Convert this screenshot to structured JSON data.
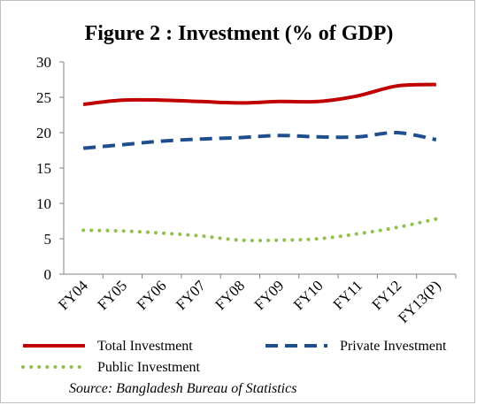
{
  "chart_data": {
    "type": "line",
    "title": "Figure 2 : Investment (% of GDP)",
    "categories": [
      "FY04",
      "FY05",
      "FY06",
      "FY07",
      "FY08",
      "FY09",
      "FY10",
      "FY11",
      "FY12",
      "FY13(P)"
    ],
    "ylim": [
      0,
      30
    ],
    "yticks": [
      0,
      5,
      10,
      15,
      20,
      25,
      30
    ],
    "series": [
      {
        "name": "Total Investment",
        "color": "#c00000",
        "style": "solid",
        "values": [
          24.0,
          24.6,
          24.6,
          24.4,
          24.2,
          24.4,
          24.4,
          25.2,
          26.6,
          26.8
        ]
      },
      {
        "name": "Private Investment",
        "color": "#1f4e8c",
        "style": "dashed",
        "values": [
          17.8,
          18.3,
          18.8,
          19.1,
          19.3,
          19.6,
          19.4,
          19.4,
          20.0,
          19.0
        ]
      },
      {
        "name": "Public Investment",
        "color": "#92c050",
        "style": "dotted",
        "values": [
          6.2,
          6.1,
          5.8,
          5.4,
          4.8,
          4.8,
          5.0,
          5.7,
          6.6,
          7.8
        ]
      }
    ],
    "legend_placement": "bottom",
    "source": "Source: Bangladesh Bureau of Statistics"
  }
}
